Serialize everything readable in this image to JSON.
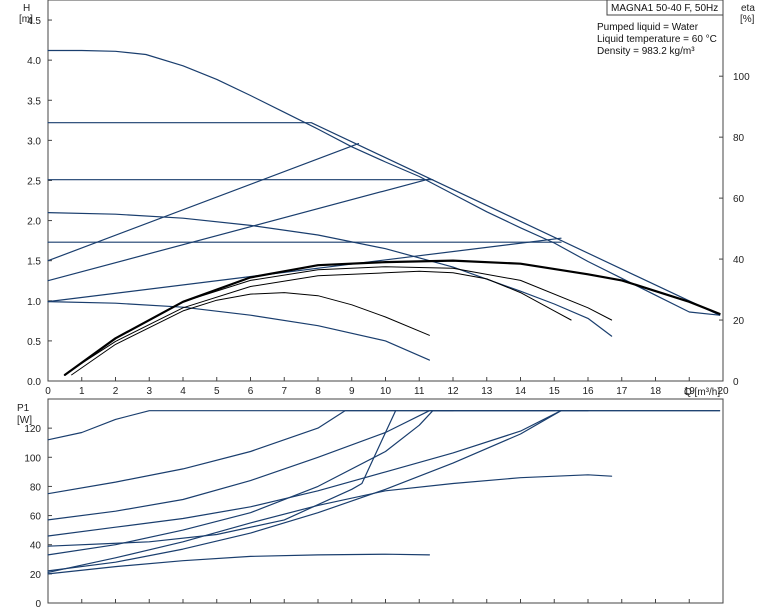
{
  "chart_data": [
    {
      "type": "line",
      "title": "MAGNA1 50-40 F, 50Hz",
      "info_lines": [
        "Pumped liquid = Water",
        "Liquid temperature = 60 °C",
        "Density = 983.2 kg/m³"
      ],
      "ylabel_left": [
        "H",
        "[m]"
      ],
      "ylabel_right": [
        "eta",
        "[%]"
      ],
      "xlabel": "Q [m³/h]",
      "xlim": [
        0,
        20
      ],
      "ylim_left": [
        0,
        4.75
      ],
      "ylim_right": [
        0,
        125
      ],
      "xticks": [
        "0",
        "1",
        "2",
        "3",
        "4",
        "5",
        "6",
        "7",
        "8",
        "9",
        "10",
        "11",
        "12",
        "13",
        "14",
        "15",
        "16",
        "17",
        "18",
        "19",
        "20"
      ],
      "yticks_left": [
        "0.0",
        "0.5",
        "1.0",
        "1.5",
        "2.0",
        "2.5",
        "3.0",
        "3.5",
        "4.0",
        "4.5"
      ],
      "yticks_right": [
        "0",
        "20",
        "40",
        "60",
        "80",
        "100"
      ],
      "grid": false,
      "head_curves": [
        {
          "points": [
            [
              0,
              4.12
            ],
            [
              1,
              4.12
            ],
            [
              2,
              4.11
            ],
            [
              2.9,
              4.07
            ],
            [
              4,
              3.93
            ],
            [
              5,
              3.76
            ],
            [
              6,
              3.56
            ],
            [
              7,
              3.35
            ],
            [
              8,
              3.14
            ],
            [
              9,
              2.92
            ],
            [
              10,
              2.73
            ],
            [
              11,
              2.55
            ],
            [
              12,
              2.33
            ],
            [
              13,
              2.11
            ],
            [
              14,
              1.91
            ],
            [
              15,
              1.72
            ],
            [
              16,
              1.49
            ],
            [
              17,
              1.28
            ],
            [
              18,
              1.07
            ],
            [
              19,
              0.86
            ],
            [
              19.9,
              0.82
            ]
          ]
        },
        {
          "points": [
            [
              0,
              2.1
            ],
            [
              2,
              2.08
            ],
            [
              4,
              2.03
            ],
            [
              6,
              1.94
            ],
            [
              8,
              1.82
            ],
            [
              10,
              1.65
            ],
            [
              12,
              1.42
            ],
            [
              14,
              1.12
            ],
            [
              15,
              0.96
            ],
            [
              16,
              0.78
            ],
            [
              16.7,
              0.56
            ]
          ]
        },
        {
          "points": [
            [
              0,
              0.99
            ],
            [
              2,
              0.97
            ],
            [
              4,
              0.92
            ],
            [
              6,
              0.82
            ],
            [
              8,
              0.69
            ],
            [
              10,
              0.5
            ],
            [
              11.3,
              0.26
            ]
          ]
        },
        {
          "points": [
            [
              0,
              3.22
            ],
            [
              7.8,
              3.22
            ],
            [
              19.9,
              0.82
            ]
          ]
        },
        {
          "points": [
            [
              0,
              2.51
            ],
            [
              11.4,
              2.51
            ]
          ]
        },
        {
          "points": [
            [
              0,
              1.73
            ],
            [
              15.2,
              1.73
            ]
          ]
        },
        {
          "points": [
            [
              0,
              1.5
            ],
            [
              9.2,
              2.96
            ]
          ]
        },
        {
          "points": [
            [
              0,
              1.25
            ],
            [
              11.3,
              2.52
            ]
          ]
        },
        {
          "points": [
            [
              0,
              0.99
            ],
            [
              15.2,
              1.78
            ]
          ]
        }
      ],
      "efficiency_curves": [
        {
          "points": [
            [
              0.5,
              2
            ],
            [
              2,
              14
            ],
            [
              4,
              26
            ],
            [
              6,
              34
            ],
            [
              8,
              38
            ],
            [
              10,
              39
            ],
            [
              12,
              39.5
            ],
            [
              14,
              38.5
            ],
            [
              16,
              35
            ],
            [
              17,
              33
            ],
            [
              19,
              26
            ],
            [
              19.9,
              22
            ]
          ],
          "bold": true
        },
        {
          "points": [
            [
              0.5,
              2
            ],
            [
              2,
              14
            ],
            [
              4,
              26
            ],
            [
              6,
              33
            ],
            [
              8,
              36.5
            ],
            [
              10,
              37.5
            ],
            [
              12,
              37
            ],
            [
              14,
              33
            ],
            [
              16,
              24
            ],
            [
              16.7,
              20
            ]
          ]
        },
        {
          "points": [
            [
              0.7,
              2
            ],
            [
              2,
              12
            ],
            [
              4,
              23
            ],
            [
              5,
              26.5
            ],
            [
              6,
              28.5
            ],
            [
              7,
              29
            ],
            [
              8,
              28
            ],
            [
              9,
              25
            ],
            [
              10,
              21
            ],
            [
              11.3,
              15
            ]
          ]
        },
        {
          "points": [
            [
              0.6,
              3
            ],
            [
              2,
              13
            ],
            [
              4,
              24
            ],
            [
              6,
              31
            ],
            [
              8,
              34.5
            ],
            [
              10,
              35.5
            ],
            [
              11,
              36
            ],
            [
              12,
              35.5
            ],
            [
              13,
              33.5
            ],
            [
              14,
              29
            ],
            [
              15,
              23
            ],
            [
              15.5,
              20
            ]
          ]
        }
      ]
    },
    {
      "type": "line",
      "ylabel": [
        "P1",
        "[W]"
      ],
      "xlim": [
        0,
        20
      ],
      "ylim": [
        0,
        140
      ],
      "yticks": [
        "0",
        "20",
        "40",
        "60",
        "80",
        "100",
        "120"
      ],
      "grid": false,
      "power_curves": [
        {
          "points": [
            [
              0,
              112
            ],
            [
              1,
              117
            ],
            [
              2,
              126
            ],
            [
              3,
              132
            ],
            [
              19.9,
              132
            ]
          ]
        },
        {
          "points": [
            [
              0,
              75
            ],
            [
              2,
              83
            ],
            [
              4,
              92
            ],
            [
              6,
              104
            ],
            [
              8,
              120
            ],
            [
              8.8,
              132
            ],
            [
              19.9,
              132
            ]
          ]
        },
        {
          "points": [
            [
              0,
              57
            ],
            [
              2,
              63
            ],
            [
              4,
              71
            ],
            [
              6,
              84
            ],
            [
              8,
              100
            ],
            [
              10,
              117
            ],
            [
              11.3,
              132
            ],
            [
              15,
              132
            ]
          ]
        },
        {
          "points": [
            [
              0,
              46
            ],
            [
              2,
              52
            ],
            [
              4,
              58
            ],
            [
              6,
              66
            ],
            [
              8,
              77
            ],
            [
              10,
              90
            ],
            [
              12,
              103
            ],
            [
              14,
              118
            ],
            [
              15.2,
              132
            ],
            [
              16,
              132
            ]
          ]
        },
        {
          "points": [
            [
              0,
              39
            ],
            [
              3,
              42
            ],
            [
              5,
              47
            ],
            [
              7,
              57
            ],
            [
              9,
              78
            ],
            [
              9.3,
              82
            ],
            [
              10.3,
              132
            ]
          ]
        },
        {
          "points": [
            [
              0,
              33
            ],
            [
              2,
              40
            ],
            [
              4,
              50
            ],
            [
              6,
              62
            ],
            [
              8,
              80
            ],
            [
              10,
              104
            ],
            [
              11,
              122
            ],
            [
              11.4,
              132
            ],
            [
              12,
              132
            ]
          ]
        },
        {
          "points": [
            [
              0,
              22
            ],
            [
              2,
              28
            ],
            [
              4,
              37
            ],
            [
              6,
              48
            ],
            [
              8,
              62
            ],
            [
              10,
              78
            ],
            [
              12,
              96
            ],
            [
              14,
              116
            ],
            [
              15.2,
              132
            ]
          ]
        },
        {
          "points": [
            [
              0,
              21
            ],
            [
              2,
              31
            ],
            [
              4,
              42
            ],
            [
              6,
              55
            ],
            [
              8,
              67
            ],
            [
              10,
              77
            ],
            [
              12,
              82
            ],
            [
              14,
              86
            ],
            [
              16,
              88
            ],
            [
              16.7,
              87
            ]
          ]
        },
        {
          "points": [
            [
              0,
              20
            ],
            [
              2,
              25
            ],
            [
              4,
              29
            ],
            [
              6,
              32
            ],
            [
              8,
              33
            ],
            [
              10,
              33.5
            ],
            [
              11.3,
              33
            ]
          ]
        }
      ]
    }
  ],
  "colors": {
    "curve": "#1a3e6e",
    "efficiency": "#000000",
    "axis": "#444444"
  }
}
